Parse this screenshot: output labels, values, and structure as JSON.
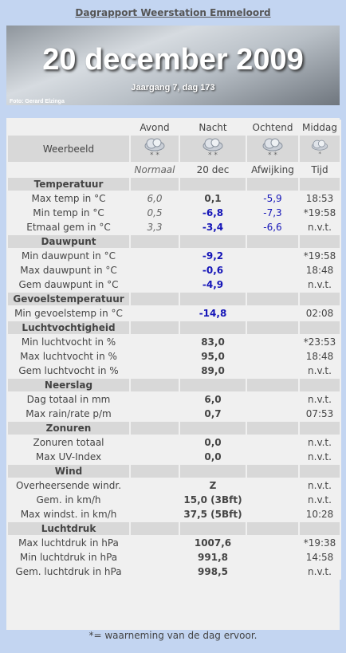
{
  "title": "Dagrapport Weerstation Emmeloord",
  "banner": {
    "date": "20 december 2009",
    "subtitle": "Jaargang 7, dag 173",
    "credit": "Foto: Gerard Elzinga"
  },
  "table": {
    "columns": [
      "Avond",
      "Nacht",
      "Ochtend",
      "Middag"
    ],
    "weather_label": "Weerbeeld",
    "subheader": [
      "Normaal",
      "20 dec",
      "Afwijking",
      "Tijd"
    ],
    "sections": [
      {
        "title": "Temperatuur",
        "rows": [
          [
            "Max temp in °C",
            "6,0",
            "0,1",
            "-5,9",
            "18:53"
          ],
          [
            "Min temp in °C",
            "0,5",
            "-6,8",
            "-7,3",
            "*19:58"
          ],
          [
            "Etmaal gem in °C",
            "3,3",
            "-3,4",
            "-6,6",
            "n.v.t."
          ]
        ]
      },
      {
        "title": "Dauwpunt",
        "rows": [
          [
            "Min dauwpunt in °C",
            null,
            "-9,2",
            null,
            "*19:58"
          ],
          [
            "Max dauwpunt in °C",
            null,
            "-0,6",
            null,
            "18:48"
          ],
          [
            "Gem dauwpunt in °C",
            null,
            "-4,9",
            null,
            "n.v.t."
          ]
        ]
      },
      {
        "title": "Gevoelstemperatuur",
        "rows": [
          [
            "Min gevoelstemp in °C",
            null,
            "-14,8",
            null,
            "02:08"
          ]
        ]
      },
      {
        "title": "Luchtvochtigheid",
        "rows": [
          [
            "Min luchtvocht in %",
            null,
            "83,0",
            null,
            "*23:53"
          ],
          [
            "Max luchtvocht in %",
            null,
            "95,0",
            null,
            "18:48"
          ],
          [
            "Gem luchtvocht in %",
            null,
            "89,0",
            null,
            "n.v.t."
          ]
        ]
      },
      {
        "title": "Neerslag",
        "rows": [
          [
            "Dag totaal in mm",
            null,
            "6,0",
            null,
            "n.v.t."
          ],
          [
            "Max rain/rate p/m",
            null,
            "0,7",
            null,
            "07:53"
          ]
        ]
      },
      {
        "title": "Zonuren",
        "rows": [
          [
            "Zonuren totaal",
            null,
            "0,0",
            null,
            "n.v.t."
          ],
          [
            "Max UV-Index",
            null,
            "0,0",
            null,
            "n.v.t."
          ]
        ]
      },
      {
        "title": "Wind",
        "rows": [
          [
            "Overheersende windr.",
            null,
            "Z",
            null,
            "n.v.t."
          ],
          [
            "Gem. in km/h",
            null,
            "15,0 (3Bft)",
            null,
            "n.v.t."
          ],
          [
            "Max windst. in km/h",
            null,
            "37,5 (5Bft)",
            null,
            "10:28"
          ]
        ]
      },
      {
        "title": "Luchtdruk",
        "rows": [
          [
            "Max luchtdruk in hPa",
            null,
            "1007,6",
            null,
            "*19:38"
          ],
          [
            "Min luchtdruk in hPa",
            null,
            "991,8",
            null,
            "14:58"
          ],
          [
            "Gem. luchtdruk in hPa",
            null,
            "998,5",
            null,
            "n.v.t."
          ]
        ]
      }
    ]
  },
  "footnote": "*= waarneming van de dag ervoor."
}
